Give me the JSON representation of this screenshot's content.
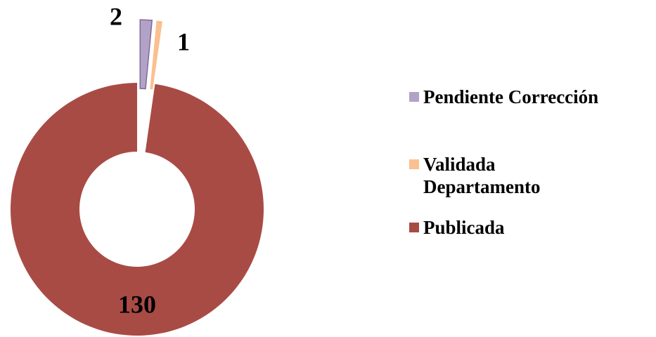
{
  "chart_data": {
    "type": "donut",
    "categories": [
      "Pendiente Corrección",
      "Validada Departamento",
      "Publicada"
    ],
    "values": [
      2,
      1,
      130
    ],
    "colors": [
      "#b3a2c7",
      "#fac090",
      "#a94b45"
    ],
    "legend": "right"
  }
}
